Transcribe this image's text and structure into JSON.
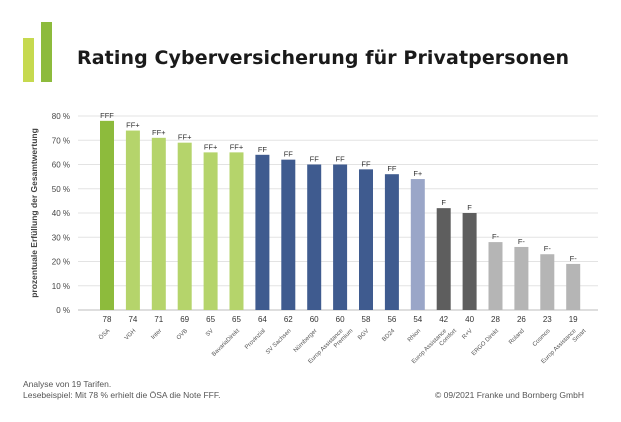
{
  "colors": {
    "logo_light": "#c6d94f",
    "logo_dark": "#8dbb3c",
    "title": "#1a1a1a"
  },
  "title": "Rating Cyberversicherung für Privatpersonen",
  "footer": {
    "line1": "Analyse von 19 Tarifen.",
    "line2": "Lesebeispiel: Mit 78 % erhielt die ÖSA die Note FFF.",
    "copyright": "© 09/2021 Franke und Bornberg GmbH"
  },
  "chart_data": {
    "type": "bar",
    "title": "Rating Cyberversicherung für Privatpersonen",
    "ylabel": "prozentuale Erfüllung der Gesamtwertung",
    "xlabel": "",
    "ylim": [
      0,
      80
    ],
    "yticks": [
      "0 %",
      "10 %",
      "20 %",
      "30 %",
      "40 %",
      "50 %",
      "60 %",
      "70 %",
      "80 %"
    ],
    "grid": true,
    "categories": [
      "ÖSA",
      "VGH",
      "Inter",
      "OVB",
      "SV",
      "BavariaDirekt",
      "Provinzial",
      "SV Sachsen",
      "Nürnberger",
      "Europ Assistance Premium",
      "BGV",
      "BD24",
      "Rhion",
      "Europ Assistance Comfort",
      "R+V",
      "ERGO Direkt",
      "Roland",
      "Cosmos",
      "Europ Assistance Smart"
    ],
    "values": [
      78,
      74,
      71,
      69,
      65,
      65,
      64,
      62,
      60,
      60,
      58,
      56,
      54,
      42,
      40,
      28,
      26,
      23,
      19
    ],
    "ratings": [
      "FFF",
      "FF+",
      "FF+",
      "FF+",
      "FF+",
      "FF+",
      "FF",
      "FF",
      "FF",
      "FF",
      "FF",
      "FF",
      "F+",
      "F",
      "F",
      "F-",
      "F-",
      "F-",
      "F-"
    ],
    "bar_colors": [
      "#8dbb3c",
      "#b5d46b",
      "#b5d46b",
      "#b5d46b",
      "#b5d46b",
      "#b5d46b",
      "#3f5b8f",
      "#3f5b8f",
      "#3f5b8f",
      "#3f5b8f",
      "#3f5b8f",
      "#3f5b8f",
      "#9aa6c8",
      "#5e5e5e",
      "#5e5e5e",
      "#b5b5b5",
      "#b5b5b5",
      "#b5b5b5",
      "#b5b5b5"
    ]
  }
}
